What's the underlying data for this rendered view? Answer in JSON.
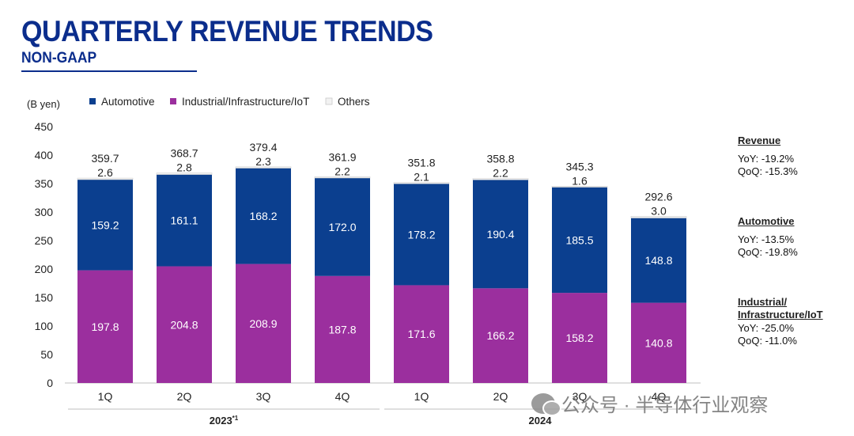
{
  "header": {
    "title": "QUARTERLY REVENUE TRENDS",
    "subtitle": "NON-GAAP"
  },
  "colors": {
    "automotive": "#0b3f8f",
    "industrial": "#9b2f9e",
    "others": "#f2f2f2",
    "title": "#0b2d8c"
  },
  "chart_data": {
    "type": "bar",
    "stacked": true,
    "unit_label": "(B yen)",
    "ylim": [
      0,
      450
    ],
    "yticks": [
      "0",
      "50",
      "100",
      "150",
      "200",
      "250",
      "300",
      "350",
      "400",
      "450"
    ],
    "categories": [
      "1Q",
      "2Q",
      "3Q",
      "4Q",
      "1Q",
      "2Q",
      "3Q",
      "4Q"
    ],
    "groups": [
      {
        "label": "2023*1",
        "from": 0,
        "to": 3
      },
      {
        "label": "2024",
        "from": 4,
        "to": 7
      }
    ],
    "legend_position": "top",
    "series": [
      {
        "name": "Industrial/Infrastructure/IoT",
        "values": [
          197.8,
          204.8,
          208.9,
          187.8,
          171.6,
          166.2,
          158.2,
          140.8
        ],
        "labels": [
          "197.8",
          "204.8",
          "208.9",
          "187.8",
          "171.6",
          "166.2",
          "158.2",
          "140.8"
        ]
      },
      {
        "name": "Automotive",
        "values": [
          159.2,
          161.1,
          168.2,
          172.0,
          178.2,
          190.4,
          185.5,
          148.8
        ],
        "labels": [
          "159.2",
          "161.1",
          "168.2",
          "172.0",
          "178.2",
          "190.4",
          "185.5",
          "148.8"
        ]
      },
      {
        "name": "Others",
        "values": [
          2.6,
          2.8,
          2.3,
          2.2,
          2.1,
          2.2,
          1.6,
          3.0
        ],
        "labels": [
          "2.6",
          "2.8",
          "2.3",
          "2.2",
          "2.1",
          "2.2",
          "1.6",
          "3.0"
        ]
      }
    ],
    "totals": [
      359.7,
      368.7,
      379.4,
      361.9,
      351.8,
      358.8,
      345.3,
      292.6
    ],
    "total_labels": [
      "359.7",
      "368.7",
      "379.4",
      "361.9",
      "351.8",
      "358.8",
      "345.3",
      "292.6"
    ]
  },
  "legend": [
    {
      "label": "Automotive",
      "color": "#0b3f8f"
    },
    {
      "label": "Industrial/Infrastructure/IoT",
      "color": "#9b2f9e"
    },
    {
      "label": "Others",
      "color": "#f2f2f2"
    }
  ],
  "side_panel": {
    "revenue": {
      "heading": "Revenue",
      "yoy": "YoY: -19.2%",
      "qoq": "QoQ: -15.3%"
    },
    "automotive": {
      "heading": "Automotive",
      "yoy": "YoY: -13.5%",
      "qoq": "QoQ: -19.8%"
    },
    "industrial": {
      "heading_line1": "Industrial/",
      "heading_line2": "Infrastructure/IoT",
      "yoy": "YoY:  -25.0%",
      "qoq": "QoQ: -11.0%"
    }
  },
  "watermark": {
    "text": "公众号 · 半导体行业观察",
    "icon": "wechat-icon"
  }
}
